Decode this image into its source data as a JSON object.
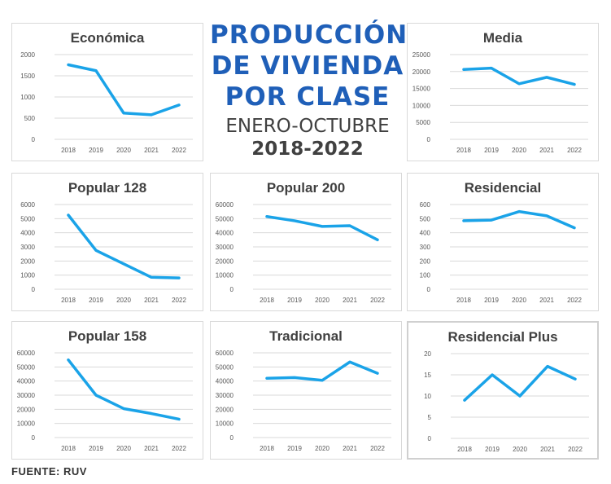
{
  "header": {
    "title_lines": [
      "PRODUCCIÓN",
      "DE VIVIENDA",
      "POR CLASE"
    ],
    "subtitle": "ENERO-OCTUBRE",
    "years": "2018-2022"
  },
  "source": "FUENTE: RUV",
  "chart_data": [
    {
      "type": "line",
      "title": "Económica",
      "categories": [
        "2018",
        "2019",
        "2020",
        "2021",
        "2022"
      ],
      "values": [
        1760,
        1620,
        620,
        580,
        810
      ],
      "yticks": [
        "0",
        "500",
        "1000",
        "1500",
        "2000"
      ],
      "ylim": [
        0,
        2000
      ],
      "grid": true,
      "color": "#1aa3e8"
    },
    {
      "type": "line",
      "title": "Media",
      "categories": [
        "2018",
        "2019",
        "2020",
        "2021",
        "2022"
      ],
      "values": [
        20600,
        21000,
        16400,
        18300,
        16200
      ],
      "yticks": [
        "0",
        "5000",
        "10000",
        "15000",
        "20000",
        "25000"
      ],
      "ylim": [
        0,
        25000
      ],
      "grid": true,
      "color": "#1aa3e8"
    },
    {
      "type": "line",
      "title": "Popular 128",
      "categories": [
        "2018",
        "2019",
        "2020",
        "2021",
        "2022"
      ],
      "values": [
        5250,
        2750,
        1800,
        850,
        800
      ],
      "yticks": [
        "0",
        "1000",
        "2000",
        "3000",
        "4000",
        "5000",
        "6000"
      ],
      "ylim": [
        0,
        6000
      ],
      "grid": true,
      "color": "#1aa3e8"
    },
    {
      "type": "line",
      "title": "Popular 200",
      "categories": [
        "2018",
        "2019",
        "2020",
        "2021",
        "2022"
      ],
      "values": [
        51500,
        48500,
        44500,
        45000,
        35000
      ],
      "yticks": [
        "0",
        "10000",
        "20000",
        "30000",
        "40000",
        "50000",
        "60000"
      ],
      "ylim": [
        0,
        60000
      ],
      "grid": true,
      "color": "#1aa3e8"
    },
    {
      "type": "line",
      "title": "Residencial",
      "categories": [
        "2018",
        "2019",
        "2020",
        "2021",
        "2022"
      ],
      "values": [
        485,
        490,
        550,
        520,
        435
      ],
      "yticks": [
        "0",
        "100",
        "200",
        "300",
        "400",
        "500",
        "600"
      ],
      "ylim": [
        0,
        600
      ],
      "grid": true,
      "color": "#1aa3e8"
    },
    {
      "type": "line",
      "title": "Popular 158",
      "categories": [
        "2018",
        "2019",
        "2020",
        "2021",
        "2022"
      ],
      "values": [
        55000,
        30000,
        20500,
        17000,
        13000
      ],
      "yticks": [
        "0",
        "10000",
        "20000",
        "30000",
        "40000",
        "50000",
        "60000"
      ],
      "ylim": [
        0,
        60000
      ],
      "grid": true,
      "color": "#1aa3e8"
    },
    {
      "type": "line",
      "title": "Tradicional",
      "categories": [
        "2018",
        "2019",
        "2020",
        "2021",
        "2022"
      ],
      "values": [
        42000,
        42500,
        40500,
        53500,
        45500
      ],
      "yticks": [
        "0",
        "10000",
        "20000",
        "30000",
        "40000",
        "50000",
        "60000"
      ],
      "ylim": [
        0,
        60000
      ],
      "grid": true,
      "color": "#1aa3e8"
    },
    {
      "type": "line",
      "title": "Residencial Plus",
      "categories": [
        "2018",
        "2019",
        "2020",
        "2021",
        "2022"
      ],
      "values": [
        9,
        15,
        10,
        17,
        14
      ],
      "yticks": [
        "0",
        "5",
        "10",
        "15",
        "20"
      ],
      "ylim": [
        0,
        20
      ],
      "grid": true,
      "color": "#1aa3e8"
    }
  ]
}
